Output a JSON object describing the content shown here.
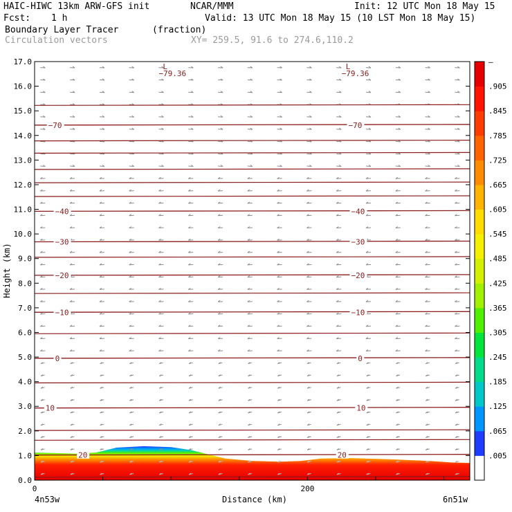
{
  "header": {
    "model": "HAIC-HIWC 13km ARW-GFS init",
    "org": "NCAR/MMM",
    "init": "Init: 12 UTC Mon 18 May 15",
    "fcst_label": "Fcst:",
    "fcst_value": "1 h",
    "valid": "Valid: 13 UTC Mon 18 May 15 (10 LST Mon 18 May 15)",
    "field_name": "Boundary Layer Tracer",
    "field_units": "(fraction)",
    "vector_label": "Circulation vectors",
    "xy_label": "XY= 259.5, 91.6 to 274.6,110.2"
  },
  "chart_data": {
    "type": "heatmap",
    "title": "Boundary Layer Tracer",
    "xlabel": "Distance (km)",
    "ylabel": "Height (km)",
    "xlim": [
      0,
      319
    ],
    "ylim": [
      0,
      17
    ],
    "x_ticks": [
      0,
      200
    ],
    "x_tick_labels": [
      "0",
      "200"
    ],
    "x_endpoints": [
      "4n53w",
      "6n51w"
    ],
    "y_ticks": [
      0,
      1,
      2,
      3,
      4,
      5,
      6,
      7,
      8,
      9,
      10,
      11,
      12,
      13,
      14,
      15,
      16,
      17
    ],
    "y_tick_labels": [
      "0.0",
      "1.0",
      "2.0",
      "3.0",
      "4.0",
      "5.0",
      "6.0",
      "7.0",
      "8.0",
      "9.0",
      "10.0",
      "11.0",
      "12.0",
      "13.0",
      "14.0",
      "15.0",
      "16.0",
      "17.0"
    ],
    "colorbar": {
      "labels": [
        ".005",
        ".065",
        ".125",
        ".185",
        ".245",
        ".305",
        ".365",
        ".425",
        ".485",
        ".545",
        ".605",
        ".665",
        ".725",
        ".785",
        ".845",
        ".905",
        "–"
      ],
      "colors": [
        "#ffffff",
        "#1e3cff",
        "#0096ff",
        "#00c8c8",
        "#00dc8c",
        "#00e63c",
        "#50f000",
        "#a0f000",
        "#d2f000",
        "#f5f000",
        "#ffdc00",
        "#ffb400",
        "#ff8c00",
        "#ff6400",
        "#ff3c00",
        "#ff1400",
        "#e60000"
      ]
    },
    "tracer_top_km": [
      {
        "x": 0,
        "z": 1.12
      },
      {
        "x": 15,
        "z": 1.1
      },
      {
        "x": 30,
        "z": 1.08
      },
      {
        "x": 45,
        "z": 1.12
      },
      {
        "x": 60,
        "z": 1.32
      },
      {
        "x": 80,
        "z": 1.38
      },
      {
        "x": 100,
        "z": 1.34
      },
      {
        "x": 115,
        "z": 1.22
      },
      {
        "x": 125,
        "z": 1.08
      },
      {
        "x": 140,
        "z": 0.88
      },
      {
        "x": 160,
        "z": 0.78
      },
      {
        "x": 180,
        "z": 0.75
      },
      {
        "x": 195,
        "z": 0.78
      },
      {
        "x": 210,
        "z": 0.88
      },
      {
        "x": 230,
        "z": 0.9
      },
      {
        "x": 260,
        "z": 0.85
      },
      {
        "x": 290,
        "z": 0.78
      },
      {
        "x": 305,
        "z": 0.72
      },
      {
        "x": 319,
        "z": 0.7
      }
    ],
    "temperature_contours": [
      {
        "label": "20",
        "z": 1.02,
        "label_positions": [
          32,
          222
        ]
      },
      {
        "label": "10",
        "z": 2.93,
        "label_positions": [
          8,
          236
        ]
      },
      {
        "label": "0",
        "z": 4.95,
        "label_positions": [
          15,
          237
        ]
      },
      {
        "label": "−10",
        "z": 6.82,
        "label_positions": [
          15,
          232
        ]
      },
      {
        "label": "−20",
        "z": 8.32,
        "label_positions": [
          15,
          232
        ]
      },
      {
        "label": "−30",
        "z": 9.68,
        "label_positions": [
          15,
          232
        ]
      },
      {
        "label": "−40",
        "z": 10.92,
        "label_positions": [
          15,
          232
        ]
      },
      {
        "label": "−70",
        "z": 14.42,
        "label_positions": [
          10,
          230
        ]
      }
    ],
    "other_contour_levels_km": [
      0.12,
      1.62,
      2.02,
      3.95,
      5.95,
      7.58,
      9.05,
      11.52,
      12.08,
      12.62,
      13.28,
      13.78,
      15.22
    ],
    "minima": [
      {
        "mark": "L",
        "value": "−79.36",
        "x": 91
      },
      {
        "mark": "L",
        "value": "−79.36",
        "x": 225
      }
    ]
  }
}
